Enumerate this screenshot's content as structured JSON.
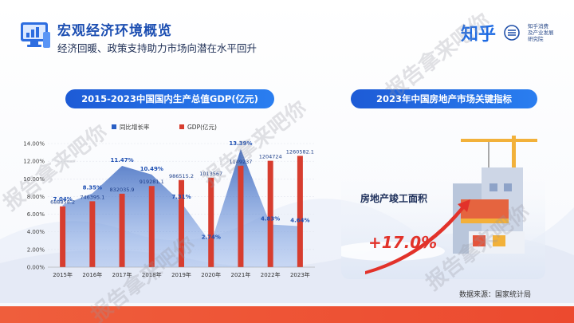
{
  "header": {
    "title": "宏观经济环境概览",
    "subtitle": "经济回暖、政策支持助力市场向潜在水平回升",
    "brand_name": "知乎",
    "brand_org_lines": [
      "知乎消费",
      "及产业发展",
      "研究院"
    ]
  },
  "left_panel": {
    "heading": "2015-2023中国国内生产总值GDP(亿元)"
  },
  "right_panel": {
    "heading": "2023年中国房地产市场关键指标",
    "metric_label": "房地产竣工面积",
    "metric_value": "+17.0%"
  },
  "source": "数据来源：国家统计局",
  "watermark": "报告拿来吧你",
  "colors": {
    "bar": "#d73d2f",
    "area": "#2a5fc4",
    "accent": "#1d5bd6",
    "footer": "#ec4a2f"
  },
  "chart_data": {
    "type": "bar",
    "categories": [
      "2015年",
      "2016年",
      "2017年",
      "2018年",
      "2019年",
      "2020年",
      "2021年",
      "2022年",
      "2023年"
    ],
    "series": [
      {
        "name": "同比增长率",
        "type": "area",
        "values": [
          7.04,
          8.35,
          11.47,
          10.49,
          7.31,
          2.74,
          13.39,
          4.83,
          4.64
        ],
        "labels": [
          "7.04%",
          "8.35%",
          "11.47%",
          "10.49%",
          "7.31%",
          "2.74%",
          "13.39%",
          "4.83%",
          "4.64%"
        ]
      },
      {
        "name": "GDP(亿元)",
        "type": "bar",
        "values": [
          688858.2,
          746395.1,
          832035.9,
          919281.1,
          986515.2,
          1013567,
          1149237,
          1204724,
          1260582.1
        ],
        "labels": [
          "688858.2",
          "746395.1",
          "832035.9",
          "919281.1",
          "986515.2",
          "1013567",
          "1149237",
          "1204724",
          "1260582.1"
        ]
      }
    ],
    "y_ticks": [
      "0.00%",
      "2.00%",
      "4.00%",
      "6.00%",
      "8.00%",
      "10.00%",
      "12.00%",
      "14.00%"
    ],
    "ylim": [
      0,
      14
    ],
    "legend_position": "top"
  }
}
